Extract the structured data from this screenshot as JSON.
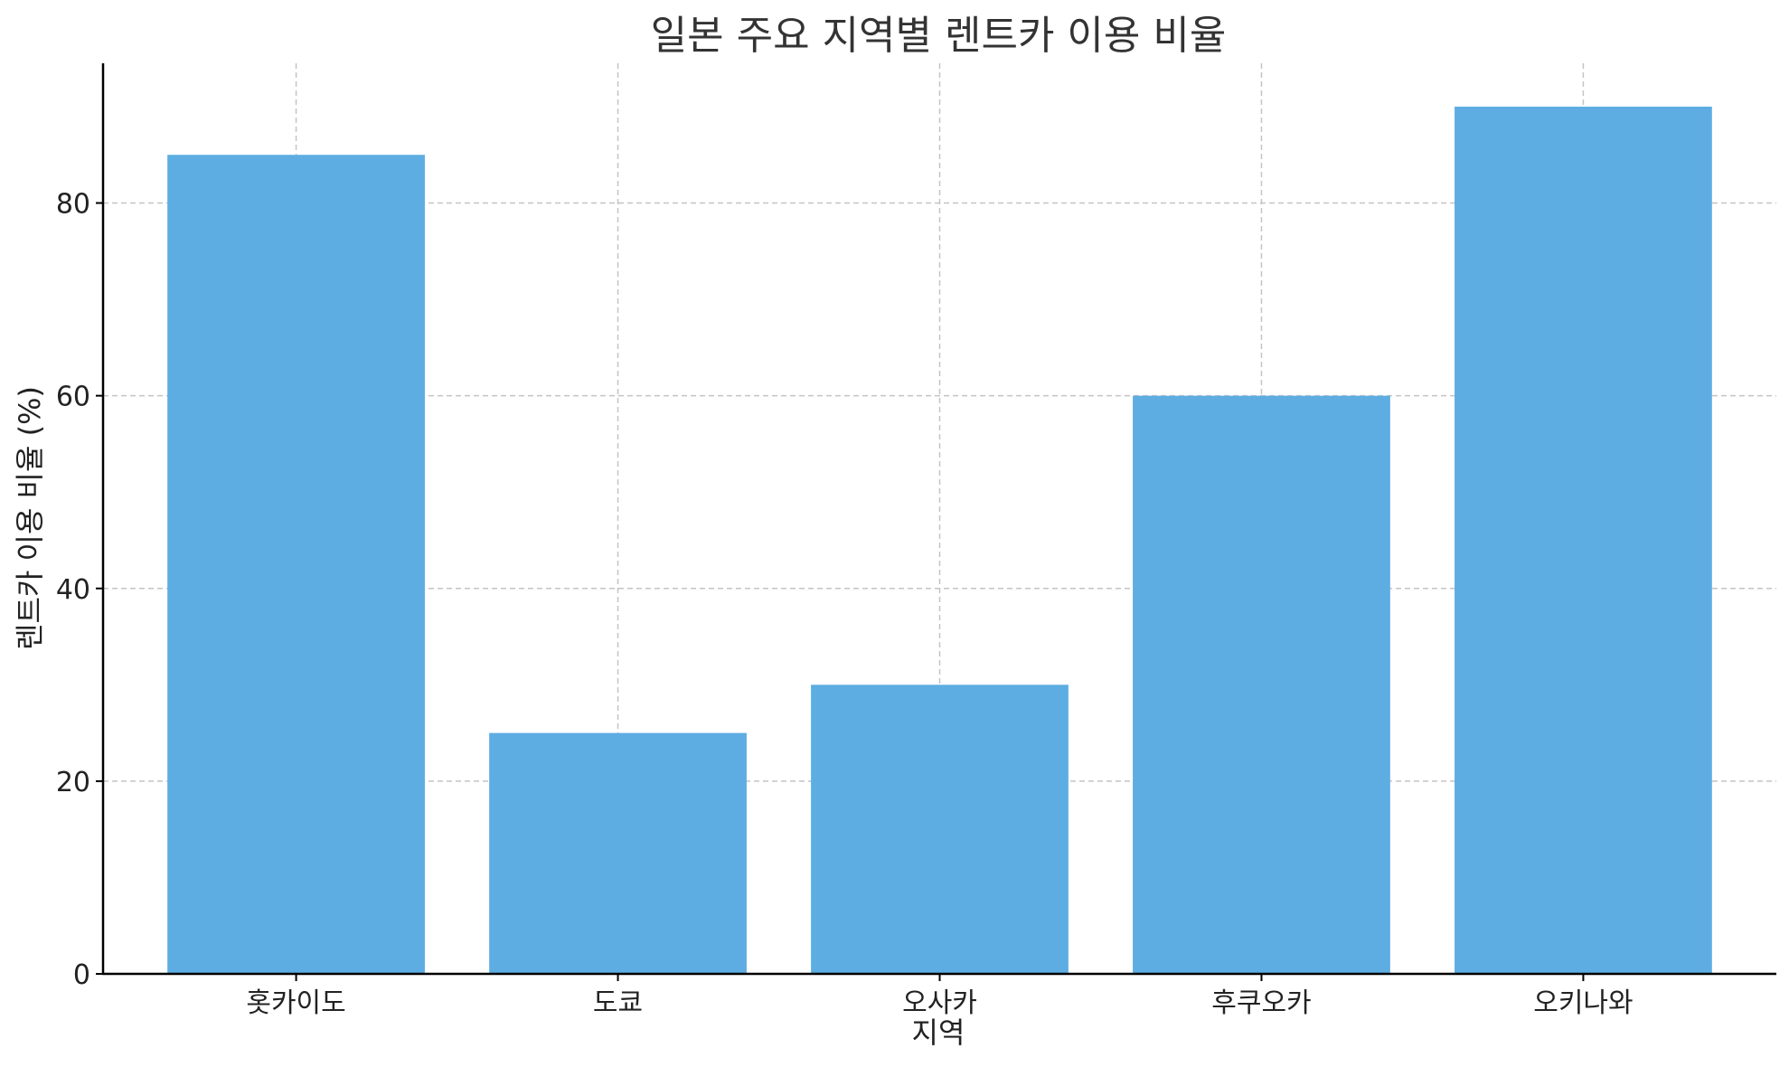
{
  "chart_data": {
    "type": "bar",
    "title": "일본 주요 지역별 렌트카 이용 비율",
    "xlabel": "지역",
    "ylabel": "렌트카 이용 비율 (%)",
    "categories": [
      "홋카이도",
      "도쿄",
      "오사카",
      "후쿠오카",
      "오키나와"
    ],
    "values": [
      85,
      25,
      30,
      60,
      90
    ],
    "ylim": [
      0,
      94.5
    ],
    "yticks": [
      0,
      20,
      40,
      60,
      80
    ],
    "grid": true,
    "bar_color": "#5dade2"
  }
}
